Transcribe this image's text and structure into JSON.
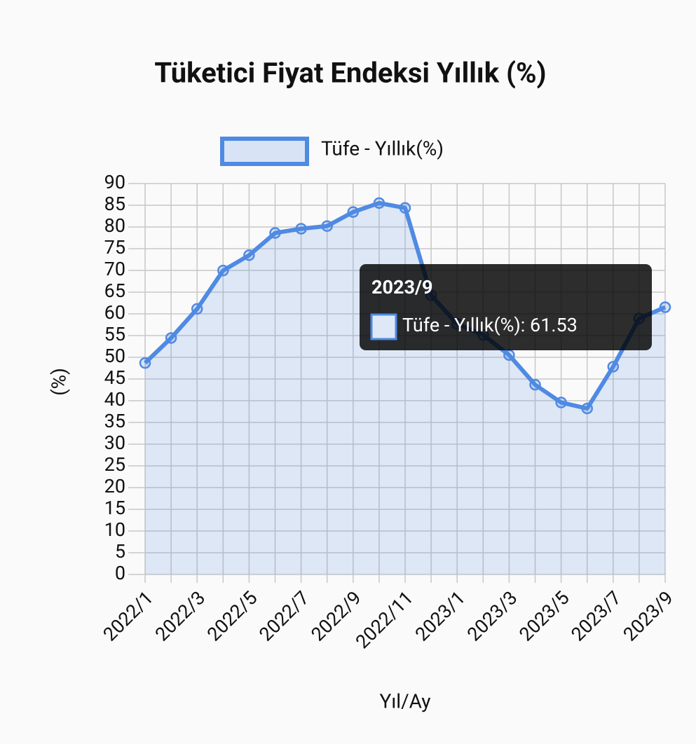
{
  "chart_data": {
    "type": "line",
    "title": "Tüketici Fiyat Endeksi Yıllık (%)",
    "x_label": "Yıl/Ay",
    "y_label": "(%)",
    "categories": [
      "2022/1",
      null,
      "2022/3",
      null,
      "2022/5",
      null,
      "2022/7",
      null,
      "2022/9",
      null,
      "2022/11",
      null,
      "2023/1",
      null,
      "2023/3",
      null,
      "2023/5",
      null,
      "2023/7",
      null,
      "2023/9"
    ],
    "series": [
      {
        "name": "Tüfe - Yıllık(%)",
        "color": "#4f8ae3",
        "values": [
          48.69,
          54.44,
          61.14,
          69.97,
          73.5,
          78.62,
          79.6,
          80.21,
          83.45,
          85.51,
          84.39,
          64.27,
          57.68,
          55.18,
          50.51,
          43.68,
          39.59,
          38.21,
          47.83,
          58.94,
          61.53
        ]
      }
    ],
    "ylim": [
      0,
      90
    ],
    "yticks": [
      0,
      5,
      10,
      15,
      20,
      25,
      30,
      35,
      40,
      45,
      50,
      55,
      60,
      65,
      70,
      75,
      80,
      85,
      90
    ],
    "grid": true,
    "legend": "top",
    "tooltip": {
      "title": "2023/9",
      "text": "Tüfe - Yıllık(%): 61.53"
    }
  }
}
